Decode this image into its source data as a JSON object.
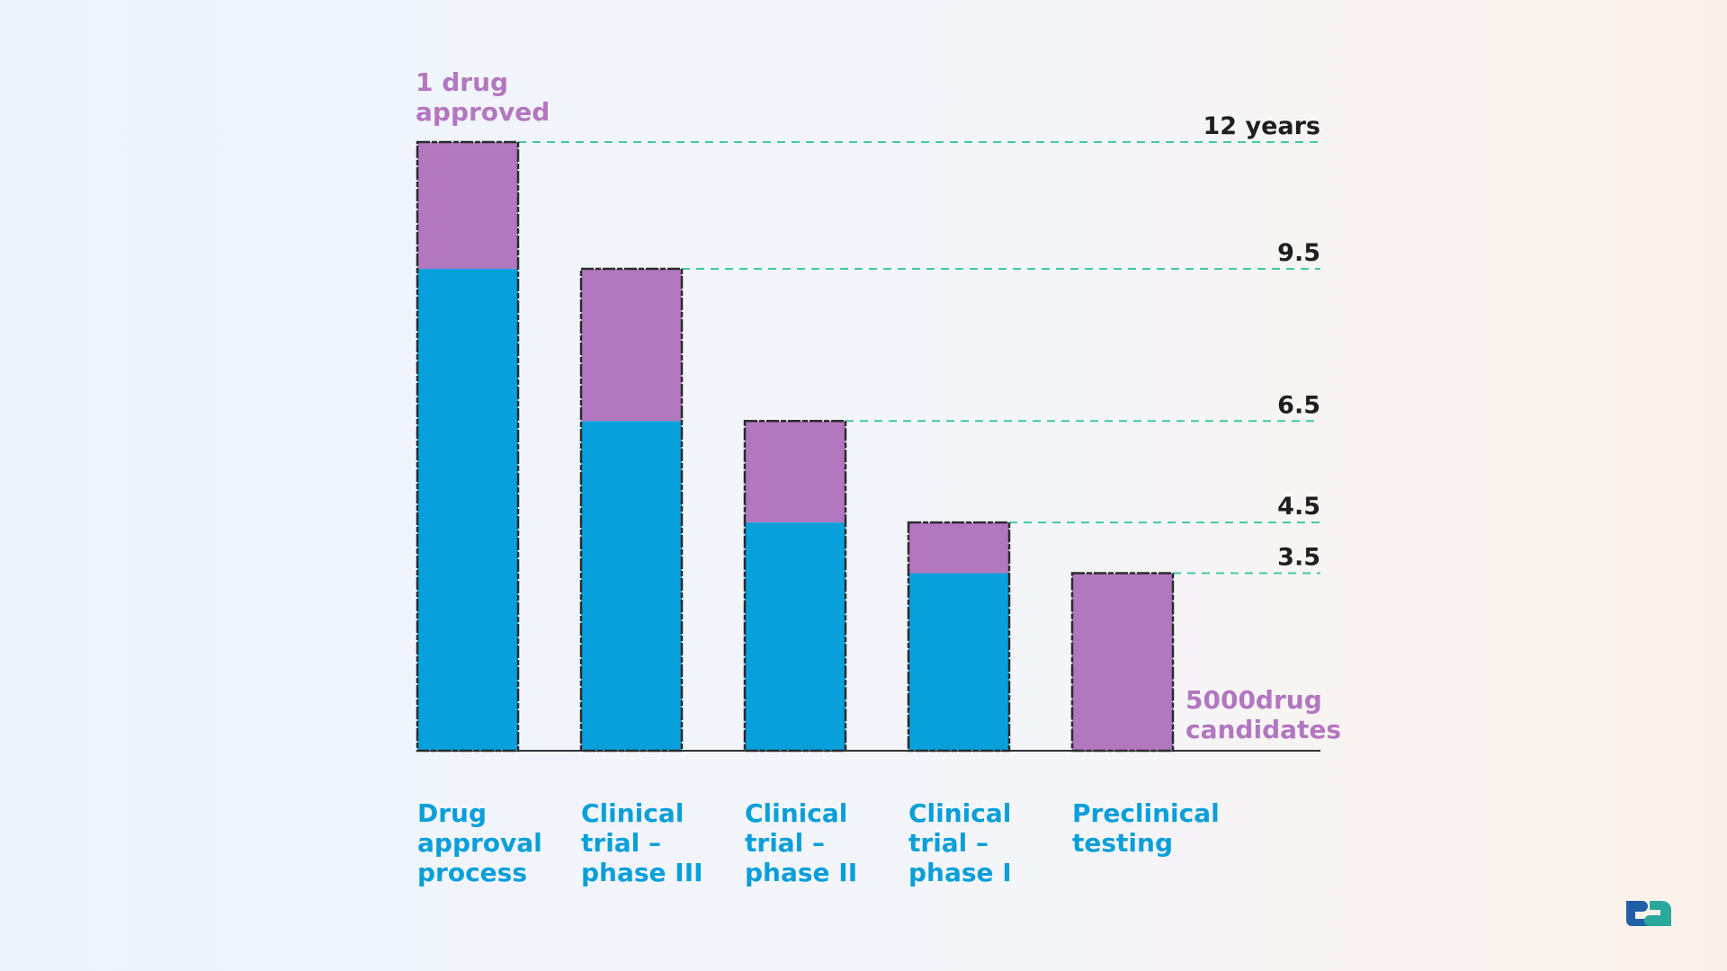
{
  "chart_data": {
    "type": "bar",
    "stacked": true,
    "categories": [
      "Drug\napproval\nprocess",
      "Clinical\ntrial –\nphase III",
      "Clinical\ntrial –\nphase II",
      "Clinical\ntrial –\nphase I",
      "Preclinical\ntesting"
    ],
    "series": [
      {
        "color": "#08a0dc",
        "values": [
          9.5,
          6.5,
          4.5,
          3.5,
          0
        ]
      },
      {
        "color": "#b277bf",
        "values": [
          2.5,
          3.0,
          2.0,
          1.0,
          3.5
        ]
      }
    ],
    "ylim": [
      0,
      12
    ],
    "reference_lines": [
      {
        "value": 12,
        "label": "12 years"
      },
      {
        "value": 9.5,
        "label": "9.5"
      },
      {
        "value": 6.5,
        "label": "6.5"
      },
      {
        "value": 4.5,
        "label": "4.5"
      },
      {
        "value": 3.5,
        "label": "3.5"
      }
    ],
    "annotations": {
      "top": "1 drug\napproved",
      "bottom": "5000drug\ncandidates"
    },
    "reference_line_color": "#3fcaa0",
    "grid": false
  }
}
